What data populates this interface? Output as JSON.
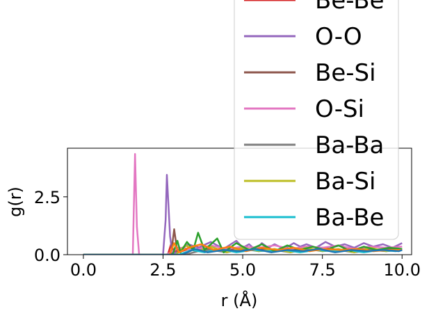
{
  "chart_data": {
    "type": "line",
    "title": "",
    "xlabel": "r (Å)",
    "ylabel": "g(r)",
    "xlim": [
      -0.5,
      10.3
    ],
    "ylim": [
      0,
      4.6
    ],
    "xticks": [
      0.0,
      2.5,
      5.0,
      7.5,
      10.0
    ],
    "xtick_labels": [
      "0.0",
      "2.5",
      "5.0",
      "7.5",
      "10.0"
    ],
    "yticks": [
      0.0,
      2.5
    ],
    "ytick_labels": [
      "0.0",
      "2.5"
    ],
    "grid": false,
    "legend_position": "upper right (extends above the axes)",
    "series": [
      {
        "name": "Be-Be",
        "color": "#d62728",
        "x": [
          0,
          2.65,
          2.75,
          2.85,
          2.95,
          3.1,
          3.5,
          4.0,
          4.5,
          5.0,
          5.5,
          6.0,
          6.5,
          7.0,
          7.5,
          8.0,
          8.5,
          9.0,
          9.5,
          10.0
        ],
        "y": [
          0,
          0,
          0.45,
          0.1,
          0.3,
          0.15,
          0.35,
          0.2,
          0.25,
          0.15,
          0.3,
          0.2,
          0.25,
          0.15,
          0.3,
          0.2,
          0.25,
          0.2,
          0.25,
          0.2
        ]
      },
      {
        "name": "O-O",
        "color": "#9467bd",
        "x": [
          0,
          2.5,
          2.58,
          2.62,
          2.72,
          2.8,
          3.0,
          3.3,
          3.6,
          4.0,
          4.4,
          4.8,
          5.0,
          5.2,
          5.4,
          5.6,
          5.8,
          6.0,
          6.3,
          6.6,
          6.8,
          7.0,
          7.3,
          7.6,
          7.9,
          8.2,
          8.5,
          8.8,
          9.1,
          9.4,
          9.7,
          10.0
        ],
        "y": [
          0,
          0,
          1.5,
          3.45,
          0.8,
          0.0,
          0.2,
          0.45,
          0.3,
          0.55,
          0.25,
          0.6,
          0.3,
          0.45,
          0.2,
          0.5,
          0.3,
          0.45,
          0.25,
          0.5,
          0.35,
          0.45,
          0.3,
          0.55,
          0.35,
          0.45,
          0.3,
          0.5,
          0.35,
          0.45,
          0.3,
          0.5
        ]
      },
      {
        "name": "Be-Si",
        "color": "#8c564b",
        "x": [
          0,
          2.75,
          2.85,
          2.95,
          3.1,
          3.4,
          3.8,
          4.3,
          4.8,
          5.3,
          5.8,
          6.3,
          6.8,
          7.3,
          7.8,
          8.3,
          8.8,
          9.3,
          9.8,
          10.0
        ],
        "y": [
          0,
          0,
          1.1,
          0.1,
          0.3,
          0.2,
          0.25,
          0.15,
          0.3,
          0.2,
          0.25,
          0.15,
          0.3,
          0.2,
          0.25,
          0.15,
          0.3,
          0.2,
          0.25,
          0.2
        ]
      },
      {
        "name": "O-Si",
        "color": "#e377c2",
        "x": [
          0,
          1.55,
          1.62,
          1.68,
          1.75,
          2.6,
          3.0,
          3.5,
          4.0,
          4.5,
          5.0,
          5.5,
          6.0,
          6.5,
          7.0,
          7.5,
          8.0,
          8.5,
          9.0,
          9.5,
          10.0
        ],
        "y": [
          0,
          0,
          4.35,
          1.2,
          0,
          0,
          0.3,
          0.2,
          0.4,
          0.25,
          0.35,
          0.3,
          0.4,
          0.25,
          0.35,
          0.3,
          0.4,
          0.25,
          0.35,
          0.3,
          0.35
        ]
      },
      {
        "name": "Ba-Ba",
        "color": "#7f7f7f",
        "x": [
          0,
          3.2,
          3.6,
          4.0,
          4.5,
          5.0,
          5.5,
          6.0,
          6.5,
          7.0,
          7.5,
          8.0,
          8.5,
          9.0,
          9.5,
          10.0
        ],
        "y": [
          0,
          0,
          0.15,
          0.2,
          0.1,
          0.25,
          0.15,
          0.2,
          0.1,
          0.25,
          0.15,
          0.2,
          0.1,
          0.2,
          0.15,
          0.2
        ]
      },
      {
        "name": "Ba-Si",
        "color": "#bcbd22",
        "x": [
          0,
          2.9,
          3.2,
          3.6,
          4.0,
          4.5,
          5.0,
          5.5,
          6.0,
          6.5,
          7.0,
          7.5,
          8.0,
          8.5,
          9.0,
          9.5,
          10.0
        ],
        "y": [
          0,
          0,
          0.4,
          0.15,
          0.35,
          0.1,
          0.3,
          0.15,
          0.25,
          0.1,
          0.3,
          0.15,
          0.25,
          0.1,
          0.3,
          0.15,
          0.25
        ]
      },
      {
        "name": "Ba-Be",
        "color": "#17becf",
        "x": [
          0,
          3.0,
          3.4,
          3.8,
          4.3,
          4.8,
          5.3,
          5.8,
          6.3,
          6.8,
          7.3,
          7.8,
          8.3,
          8.8,
          9.3,
          9.8,
          10.0
        ],
        "y": [
          0,
          0,
          0.2,
          0.1,
          0.25,
          0.1,
          0.2,
          0.15,
          0.2,
          0.1,
          0.2,
          0.15,
          0.2,
          0.1,
          0.2,
          0.15,
          0.2
        ]
      },
      {
        "name": "",
        "color": "#2ca02c",
        "x": [
          0,
          2.8,
          2.95,
          3.05,
          3.25,
          3.45,
          3.6,
          3.8,
          4.2,
          4.4,
          4.8,
          5.2,
          5.6,
          6.0,
          6.4,
          6.8,
          7.2,
          7.6,
          8.0,
          8.4,
          8.8,
          9.2,
          9.6,
          10.0
        ],
        "y": [
          0,
          0,
          0.6,
          0.1,
          0.55,
          0.2,
          0.95,
          0.2,
          0.7,
          0.1,
          0.5,
          0.2,
          0.45,
          0.15,
          0.4,
          0.2,
          0.35,
          0.2,
          0.4,
          0.15,
          0.35,
          0.2,
          0.3,
          0.25
        ]
      },
      {
        "name": "",
        "color": "#ff7f0e",
        "x": [
          0,
          2.7,
          2.85,
          3.0,
          3.3,
          3.7,
          4.1,
          4.6,
          5.1,
          5.6,
          6.1,
          6.6,
          7.1,
          7.6,
          8.1,
          8.6,
          9.1,
          9.6,
          10.0
        ],
        "y": [
          0,
          0,
          0.5,
          0.1,
          0.3,
          0.45,
          0.2,
          0.35,
          0.15,
          0.3,
          0.2,
          0.3,
          0.15,
          0.25,
          0.2,
          0.25,
          0.15,
          0.2,
          0.2
        ]
      },
      {
        "name": "",
        "color": "#1f77b4",
        "x": [
          0,
          3.1,
          3.5,
          3.9,
          4.4,
          4.9,
          5.4,
          5.9,
          6.4,
          6.9,
          7.4,
          7.9,
          8.4,
          8.9,
          9.4,
          9.9,
          10.0
        ],
        "y": [
          0,
          0,
          0.25,
          0.1,
          0.2,
          0.15,
          0.25,
          0.1,
          0.2,
          0.15,
          0.25,
          0.1,
          0.2,
          0.15,
          0.2,
          0.15,
          0.2
        ]
      }
    ],
    "legend_entries": [
      {
        "label": "Be-Be",
        "color": "#d62728"
      },
      {
        "label": "O-O",
        "color": "#9467bd"
      },
      {
        "label": "Be-Si",
        "color": "#8c564b"
      },
      {
        "label": "O-Si",
        "color": "#e377c2"
      },
      {
        "label": "Ba-Ba",
        "color": "#7f7f7f"
      },
      {
        "label": "Ba-Si",
        "color": "#bcbd22"
      },
      {
        "label": "Ba-Be",
        "color": "#17becf"
      }
    ]
  }
}
